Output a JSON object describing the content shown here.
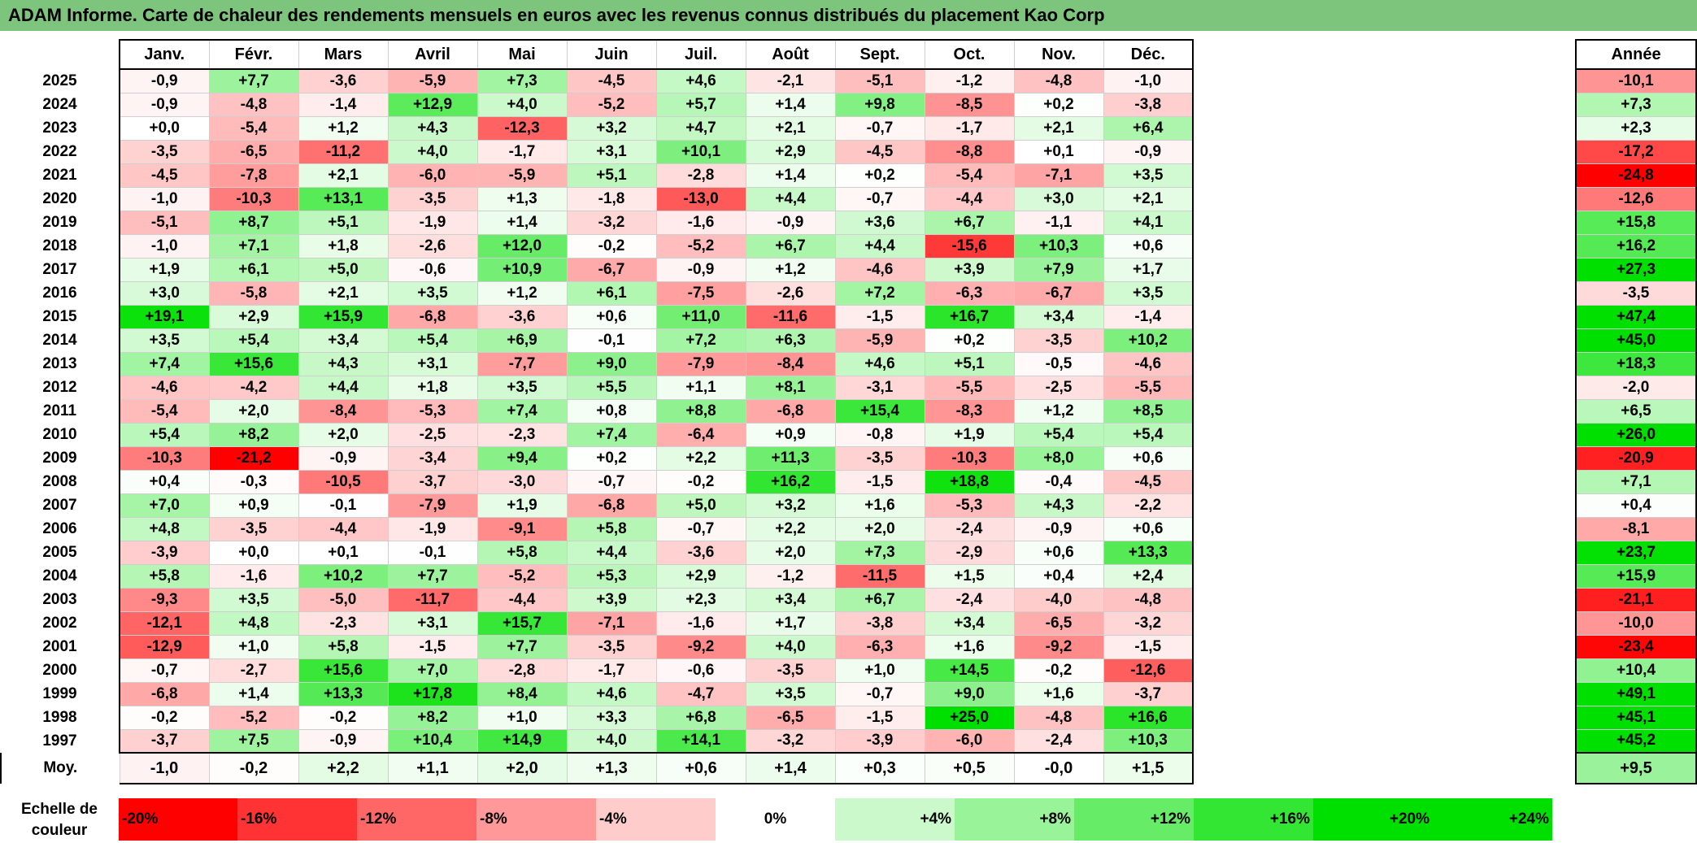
{
  "title": "ADAM Informe. Carte de chaleur des rendements mensuels en euros avec les revenus connus distribués du placement Kao Corp",
  "avg_label": "Moy.",
  "year_header": "Année",
  "scale": {
    "label_line1": "Echelle de",
    "label_line2": "couleur",
    "items": [
      "-20%",
      "-16%",
      "-12%",
      "-8%",
      "-4%",
      "0%",
      "+4%",
      "+8%",
      "+12%",
      "+16%",
      "+20%",
      "+24%"
    ],
    "values": [
      -20,
      -16,
      -12,
      -8,
      -4,
      0,
      4,
      8,
      12,
      16,
      20,
      24
    ]
  },
  "colors": {
    "title_bg": "#7dc47d",
    "negative_max": "#ff0000",
    "positive_max": "#00e000",
    "neutral": "#ffffff"
  },
  "chart_data": {
    "type": "heatmap",
    "title": "ADAM Informe. Carte de chaleur des rendements mensuels en euros avec les revenus connus distribués du placement Kao Corp",
    "columns": [
      "Janv.",
      "Févr.",
      "Mars",
      "Avril",
      "Mai",
      "Juin",
      "Juil.",
      "Août",
      "Sept.",
      "Oct.",
      "Nov.",
      "Déc."
    ],
    "rows": [
      {
        "year": "2025",
        "values": [
          "-0,9",
          "+7,7",
          "-3,6",
          "-5,9",
          "+7,3",
          "-4,5",
          "+4,6",
          "-2,1",
          "-5,1",
          "-1,2",
          "-4,8",
          "-1,0"
        ],
        "annual": "-10,1"
      },
      {
        "year": "2024",
        "values": [
          "-0,9",
          "-4,8",
          "-1,4",
          "+12,9",
          "+4,0",
          "-5,2",
          "+5,7",
          "+1,4",
          "+9,8",
          "-8,5",
          "+0,2",
          "-3,8"
        ],
        "annual": "+7,3"
      },
      {
        "year": "2023",
        "values": [
          "+0,0",
          "-5,4",
          "+1,2",
          "+4,3",
          "-12,3",
          "+3,2",
          "+4,7",
          "+2,1",
          "-0,7",
          "-1,7",
          "+2,1",
          "+6,4"
        ],
        "annual": "+2,3"
      },
      {
        "year": "2022",
        "values": [
          "-3,5",
          "-6,5",
          "-11,2",
          "+4,0",
          "-1,7",
          "+3,1",
          "+10,1",
          "+2,9",
          "-4,5",
          "-8,8",
          "+0,1",
          "-0,9"
        ],
        "annual": "-17,2"
      },
      {
        "year": "2021",
        "values": [
          "-4,5",
          "-7,8",
          "+2,1",
          "-6,0",
          "-5,9",
          "+5,1",
          "-2,8",
          "+1,4",
          "+0,2",
          "-5,4",
          "-7,1",
          "+3,5"
        ],
        "annual": "-24,8"
      },
      {
        "year": "2020",
        "values": [
          "-1,0",
          "-10,3",
          "+13,1",
          "-3,5",
          "+1,3",
          "-1,8",
          "-13,0",
          "+4,4",
          "-0,7",
          "-4,4",
          "+3,0",
          "+2,1"
        ],
        "annual": "-12,6"
      },
      {
        "year": "2019",
        "values": [
          "-5,1",
          "+8,7",
          "+5,1",
          "-1,9",
          "+1,4",
          "-3,2",
          "-1,6",
          "-0,9",
          "+3,6",
          "+6,7",
          "-1,1",
          "+4,1"
        ],
        "annual": "+15,8"
      },
      {
        "year": "2018",
        "values": [
          "-1,0",
          "+7,1",
          "+1,8",
          "-2,6",
          "+12,0",
          "-0,2",
          "-5,2",
          "+6,7",
          "+4,4",
          "-15,6",
          "+10,3",
          "+0,6"
        ],
        "annual": "+16,2"
      },
      {
        "year": "2017",
        "values": [
          "+1,9",
          "+6,1",
          "+5,0",
          "-0,6",
          "+10,9",
          "-6,7",
          "-0,9",
          "+1,2",
          "-4,6",
          "+3,9",
          "+7,9",
          "+1,7"
        ],
        "annual": "+27,3"
      },
      {
        "year": "2016",
        "values": [
          "+3,0",
          "-5,8",
          "+2,1",
          "+3,5",
          "+1,2",
          "+6,1",
          "-7,5",
          "-2,6",
          "+7,2",
          "-6,3",
          "-6,7",
          "+3,5"
        ],
        "annual": "-3,5"
      },
      {
        "year": "2015",
        "values": [
          "+19,1",
          "+2,9",
          "+15,9",
          "-6,8",
          "-3,6",
          "+0,6",
          "+11,0",
          "-11,6",
          "-1,5",
          "+16,7",
          "+3,4",
          "-1,4"
        ],
        "annual": "+47,4"
      },
      {
        "year": "2014",
        "values": [
          "+3,5",
          "+5,4",
          "+3,4",
          "+5,4",
          "+6,9",
          "-0,1",
          "+7,2",
          "+6,3",
          "-5,9",
          "+0,2",
          "-3,5",
          "+10,2"
        ],
        "annual": "+45,0"
      },
      {
        "year": "2013",
        "values": [
          "+7,4",
          "+15,6",
          "+4,3",
          "+3,1",
          "-7,7",
          "+9,0",
          "-7,9",
          "-8,4",
          "+4,6",
          "+5,1",
          "-0,5",
          "-4,6"
        ],
        "annual": "+18,3"
      },
      {
        "year": "2012",
        "values": [
          "-4,6",
          "-4,2",
          "+4,4",
          "+1,8",
          "+3,5",
          "+5,5",
          "+1,1",
          "+8,1",
          "-3,1",
          "-5,5",
          "-2,5",
          "-5,5"
        ],
        "annual": "-2,0"
      },
      {
        "year": "2011",
        "values": [
          "-5,4",
          "+2,0",
          "-8,4",
          "-5,3",
          "+7,4",
          "+0,8",
          "+8,8",
          "-6,8",
          "+15,4",
          "-8,3",
          "+1,2",
          "+8,5"
        ],
        "annual": "+6,5"
      },
      {
        "year": "2010",
        "values": [
          "+5,4",
          "+8,2",
          "+2,0",
          "-2,5",
          "-2,3",
          "+7,4",
          "-6,4",
          "+0,9",
          "-0,8",
          "+1,9",
          "+5,4",
          "+5,4"
        ],
        "annual": "+26,0"
      },
      {
        "year": "2009",
        "values": [
          "-10,3",
          "-21,2",
          "-0,9",
          "-3,4",
          "+9,4",
          "+0,2",
          "+2,2",
          "+11,3",
          "-3,5",
          "-10,3",
          "+8,0",
          "+0,6"
        ],
        "annual": "-20,9"
      },
      {
        "year": "2008",
        "values": [
          "+0,4",
          "-0,3",
          "-10,5",
          "-3,7",
          "-3,0",
          "-0,7",
          "-0,2",
          "+16,2",
          "-1,5",
          "+18,8",
          "-0,4",
          "-4,5"
        ],
        "annual": "+7,1"
      },
      {
        "year": "2007",
        "values": [
          "+7,0",
          "+0,9",
          "-0,1",
          "-7,9",
          "+1,9",
          "-6,8",
          "+5,0",
          "+3,2",
          "+1,6",
          "-5,3",
          "+4,3",
          "-2,2"
        ],
        "annual": "+0,4"
      },
      {
        "year": "2006",
        "values": [
          "+4,8",
          "-3,5",
          "-4,4",
          "-1,9",
          "-9,1",
          "+5,8",
          "-0,7",
          "+2,2",
          "+2,0",
          "-2,4",
          "-0,9",
          "+0,6"
        ],
        "annual": "-8,1"
      },
      {
        "year": "2005",
        "values": [
          "-3,9",
          "+0,0",
          "+0,1",
          "-0,1",
          "+5,8",
          "+4,4",
          "-3,6",
          "+2,0",
          "+7,3",
          "-2,9",
          "+0,6",
          "+13,3"
        ],
        "annual": "+23,7"
      },
      {
        "year": "2004",
        "values": [
          "+5,8",
          "-1,6",
          "+10,2",
          "+7,7",
          "-5,2",
          "+5,3",
          "+2,9",
          "-1,2",
          "-11,5",
          "+1,5",
          "+0,4",
          "+2,4"
        ],
        "annual": "+15,9"
      },
      {
        "year": "2003",
        "values": [
          "-9,3",
          "+3,5",
          "-5,0",
          "-11,7",
          "-4,4",
          "+3,9",
          "+2,3",
          "+3,4",
          "+6,7",
          "-2,4",
          "-4,0",
          "-4,8"
        ],
        "annual": "-21,1"
      },
      {
        "year": "2002",
        "values": [
          "-12,1",
          "+4,8",
          "-2,3",
          "+3,1",
          "+15,7",
          "-7,1",
          "-1,6",
          "+1,7",
          "-3,8",
          "+3,4",
          "-6,5",
          "-3,2"
        ],
        "annual": "-10,0"
      },
      {
        "year": "2001",
        "values": [
          "-12,9",
          "+1,0",
          "+5,8",
          "-1,5",
          "+7,7",
          "-3,5",
          "-9,2",
          "+4,0",
          "-6,3",
          "+1,6",
          "-9,2",
          "-1,5"
        ],
        "annual": "-23,4"
      },
      {
        "year": "2000",
        "values": [
          "-0,7",
          "-2,7",
          "+15,6",
          "+7,0",
          "-2,8",
          "-1,7",
          "-0,6",
          "-3,5",
          "+1,0",
          "+14,5",
          "-0,2",
          "-12,6"
        ],
        "annual": "+10,4"
      },
      {
        "year": "1999",
        "values": [
          "-6,8",
          "+1,4",
          "+13,3",
          "+17,8",
          "+8,4",
          "+4,6",
          "-4,7",
          "+3,5",
          "-0,7",
          "+9,0",
          "+1,6",
          "-3,7"
        ],
        "annual": "+49,1"
      },
      {
        "year": "1998",
        "values": [
          "-0,2",
          "-5,2",
          "-0,2",
          "+8,2",
          "+1,0",
          "+3,3",
          "+6,8",
          "-6,5",
          "-1,5",
          "+25,0",
          "-4,8",
          "+16,6"
        ],
        "annual": "+45,1"
      },
      {
        "year": "1997",
        "values": [
          "-3,7",
          "+7,5",
          "-0,9",
          "+10,4",
          "+14,9",
          "+4,0",
          "+14,1",
          "-3,2",
          "-3,9",
          "-6,0",
          "-2,4",
          "+10,3"
        ],
        "annual": "+45,2"
      }
    ],
    "averages": [
      "-1,0",
      "-0,2",
      "+2,2",
      "+1,1",
      "+2,0",
      "+1,3",
      "+0,6",
      "+1,4",
      "+0,3",
      "+0,5",
      "-0,0",
      "+1,5"
    ],
    "average_annual": "+9,5",
    "legend": "bottom"
  }
}
